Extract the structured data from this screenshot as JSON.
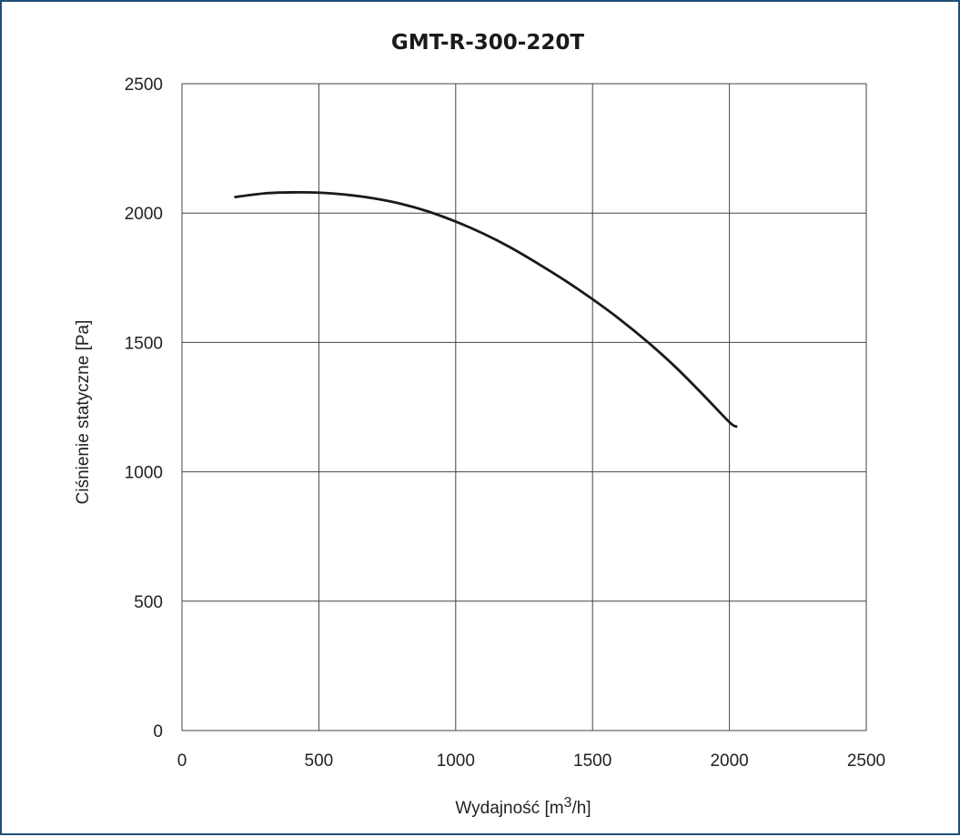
{
  "chart_data": {
    "type": "line",
    "title": "GMT-R-300-220T",
    "xlabel_main": "Wydajność [m",
    "xlabel_sup": "3",
    "xlabel_tail": "/h]",
    "ylabel": "Ciśnienie statyczne [Pa]",
    "xlim": [
      0,
      2500
    ],
    "ylim": [
      0,
      2500
    ],
    "x_ticks": [
      "0",
      "500",
      "1000",
      "1500",
      "2000",
      "2500"
    ],
    "y_ticks": [
      "0",
      "500",
      "1000",
      "1500",
      "2000",
      "2500"
    ],
    "grid": true,
    "series": [
      {
        "color": "#1a1a1a",
        "x": [
          195,
          300,
          400,
          500,
          600,
          700,
          800,
          900,
          1000,
          1100,
          1200,
          1300,
          1400,
          1500,
          1600,
          1700,
          1800,
          1900,
          2000,
          2025
        ],
        "y": [
          2062,
          2076,
          2080,
          2079,
          2071,
          2057,
          2036,
          2006,
          1967,
          1921,
          1867,
          1805,
          1739,
          1667,
          1589,
          1503,
          1408,
          1302,
          1192,
          1175
        ]
      }
    ]
  }
}
